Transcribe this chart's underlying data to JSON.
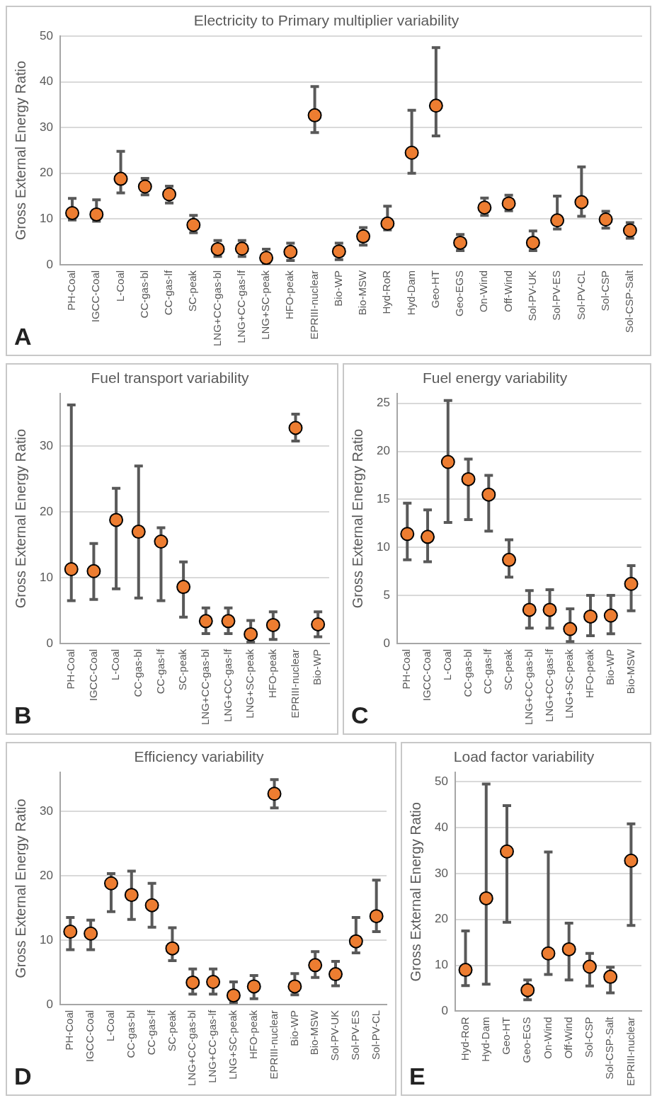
{
  "chart_data": [
    {
      "type": "scatter",
      "title": "Electricity to Primary multiplier variability",
      "ylabel": "Gross External Energy Ratio",
      "annotations": [
        "A"
      ],
      "categories": [
        "PH-Coal",
        "IGCC-Coal",
        "L-Coal",
        "CC-gas-bl",
        "CC-gas-lf",
        "SC-peak",
        "LNG+CC-gas-bl",
        "LNG+CC-gas-lf",
        "LNG+SC-peak",
        "HFO-peak",
        "EPRIII-nuclear",
        "Bio-WP",
        "Bio-MSW",
        "Hyd-RoR",
        "Hyd-Dam",
        "Geo-HT",
        "Geo-EGS",
        "On-Wind",
        "Off-Wind",
        "Sol-PV-UK",
        "Sol-PV-ES",
        "Sol-PV-CL",
        "Sol-CSP",
        "Sol-CSP-Salt"
      ],
      "values": [
        11.3,
        11,
        18.8,
        17.1,
        15.4,
        8.7,
        3.4,
        3.5,
        1.5,
        2.8,
        32.7,
        2.9,
        6.2,
        9,
        24.5,
        34.8,
        4.8,
        12.5,
        13.4,
        4.8,
        9.7,
        13.7,
        9.9,
        7.5
      ],
      "errors": [
        [
          9.8,
          14.5
        ],
        [
          9.5,
          14.2
        ],
        [
          15.7,
          24.8
        ],
        [
          15.3,
          18.9
        ],
        [
          13.5,
          17.2
        ],
        [
          7,
          10.8
        ],
        [
          1.8,
          5.3
        ],
        [
          1.8,
          5.3
        ],
        [
          0.3,
          3.4
        ],
        [
          0.9,
          4.7
        ],
        [
          28.9,
          39
        ],
        [
          1.1,
          4.7
        ],
        [
          4.3,
          8.1
        ],
        [
          7.6,
          12.8
        ],
        [
          20,
          33.8
        ],
        [
          28.2,
          47.5
        ],
        [
          3.1,
          6.6
        ],
        [
          10.8,
          14.6
        ],
        [
          11.8,
          15.2
        ],
        [
          3.1,
          7.4
        ],
        [
          7.8,
          15
        ],
        [
          10.6,
          21.4
        ],
        [
          8,
          11.7
        ],
        [
          5.8,
          9.2
        ]
      ],
      "color": "#ed7d31",
      "marker": "circle",
      "grid": "y",
      "ylim": [
        0,
        50
      ],
      "yticks": [
        0,
        10,
        20,
        30,
        40,
        50
      ]
    },
    {
      "type": "scatter",
      "title": "Fuel transport variability",
      "ylabel": "Gross External Energy Ratio",
      "annotations": [
        "B"
      ],
      "categories": [
        "PH-Coal",
        "IGCC-Coal",
        "L-Coal",
        "CC-gas-bl",
        "CC-gas-lf",
        "SC-peak",
        "LNG+CC-gas-bl",
        "LNG+CC-gas-lf",
        "LNG+SC-peak",
        "HFO-peak",
        "EPRIII-nuclear",
        "Bio-WP"
      ],
      "values": [
        11.3,
        11,
        18.8,
        17,
        15.5,
        8.6,
        3.4,
        3.4,
        1.4,
        2.8,
        32.8,
        2.9
      ],
      "errors": [
        [
          6.5,
          36.3
        ],
        [
          6.7,
          15.2
        ],
        [
          8.3,
          23.6
        ],
        [
          6.9,
          27
        ],
        [
          6.5,
          17.6
        ],
        [
          4,
          12.4
        ],
        [
          1.5,
          5.4
        ],
        [
          1.5,
          5.4
        ],
        [
          0.2,
          3.5
        ],
        [
          0.6,
          4.8
        ],
        [
          30.8,
          34.9
        ],
        [
          1,
          4.8
        ]
      ],
      "color": "#ed7d31",
      "marker": "circle",
      "grid": "y",
      "ylim": [
        0,
        38
      ],
      "yticks": [
        0,
        10,
        20,
        30
      ]
    },
    {
      "type": "scatter",
      "title": "Fuel energy variability",
      "ylabel": "Gross External Energy Ratio",
      "annotations": [
        "C"
      ],
      "categories": [
        "PH-Coal",
        "IGCC-Coal",
        "L-Coal",
        "CC-gas-bl",
        "CC-gas-lf",
        "SC-peak",
        "LNG+CC-gas-bl",
        "LNG+CC-gas-lf",
        "LNG+SC-peak",
        "HFO-peak",
        "Bio-WP",
        "Bio-MSW"
      ],
      "values": [
        11.4,
        11.1,
        18.9,
        17.1,
        15.5,
        8.7,
        3.5,
        3.5,
        1.5,
        2.8,
        2.9,
        6.2
      ],
      "errors": [
        [
          8.7,
          14.6
        ],
        [
          8.5,
          13.9
        ],
        [
          12.6,
          25.3
        ],
        [
          12.9,
          19.2
        ],
        [
          11.7,
          17.5
        ],
        [
          6.9,
          10.8
        ],
        [
          1.6,
          5.5
        ],
        [
          1.6,
          5.6
        ],
        [
          0.2,
          3.6
        ],
        [
          0.8,
          5
        ],
        [
          1,
          5
        ],
        [
          3.4,
          8.1
        ]
      ],
      "color": "#ed7d31",
      "marker": "circle",
      "grid": "y",
      "ylim": [
        0,
        26
      ],
      "yticks": [
        0,
        5,
        10,
        15,
        20,
        25
      ]
    },
    {
      "type": "scatter",
      "title": "Efficiency variability",
      "ylabel": "Gross External Energy Ratio",
      "annotations": [
        "D"
      ],
      "categories": [
        "PH-Coal",
        "IGCC-Coal",
        "L-Coal",
        "CC-gas-bl",
        "CC-gas-lf",
        "SC-peak",
        "LNG+CC-gas-bl",
        "LNG+CC-gas-lf",
        "LNG+SC-peak",
        "HFO-peak",
        "EPRIII-nuclear",
        "Bio-WP",
        "Bio-MSW",
        "Sol-PV-UK",
        "Sol-PV-ES",
        "Sol-PV-CL"
      ],
      "values": [
        11.3,
        11,
        18.8,
        17,
        15.4,
        8.7,
        3.4,
        3.5,
        1.4,
        2.8,
        32.7,
        2.8,
        6.1,
        4.7,
        9.8,
        13.7
      ],
      "errors": [
        [
          8.5,
          13.5
        ],
        [
          8.5,
          13.1
        ],
        [
          14.4,
          20.3
        ],
        [
          13.2,
          20.7
        ],
        [
          12,
          18.8
        ],
        [
          6.8,
          11.9
        ],
        [
          1.6,
          5.5
        ],
        [
          1.6,
          5.5
        ],
        [
          0.3,
          3.5
        ],
        [
          0.9,
          4.5
        ],
        [
          30.5,
          34.9
        ],
        [
          1.5,
          4.8
        ],
        [
          4.2,
          8.2
        ],
        [
          2.9,
          6.7
        ],
        [
          8,
          13.5
        ],
        [
          11.3,
          19.3
        ]
      ],
      "color": "#ed7d31",
      "marker": "circle",
      "grid": "y",
      "ylim": [
        0,
        36
      ],
      "yticks": [
        0,
        10,
        20,
        30
      ]
    },
    {
      "type": "scatter",
      "title": "Load factor variability",
      "ylabel": "Gross External Energy Ratio",
      "annotations": [
        "E"
      ],
      "categories": [
        "Hyd-RoR",
        "Hyd-Dam",
        "Geo-HT",
        "Geo-EGS",
        "On-Wind",
        "Off-Wind",
        "Sol-CSP",
        "Sol-CSP-Salt",
        "EPRIII-nuclear"
      ],
      "values": [
        9,
        24.6,
        34.8,
        4.6,
        12.6,
        13.5,
        9.7,
        7.5,
        32.8
      ],
      "errors": [
        [
          5.6,
          17.5
        ],
        [
          5.9,
          49.5
        ],
        [
          19.4,
          44.8
        ],
        [
          2.5,
          6.8
        ],
        [
          8,
          34.7
        ],
        [
          6.8,
          19.2
        ],
        [
          5.5,
          12.6
        ],
        [
          4,
          9.6
        ],
        [
          18.7,
          40.8
        ]
      ],
      "color": "#ed7d31",
      "marker": "circle",
      "grid": "y",
      "ylim": [
        0,
        52
      ],
      "yticks": [
        0,
        10,
        20,
        30,
        40,
        50
      ]
    }
  ]
}
